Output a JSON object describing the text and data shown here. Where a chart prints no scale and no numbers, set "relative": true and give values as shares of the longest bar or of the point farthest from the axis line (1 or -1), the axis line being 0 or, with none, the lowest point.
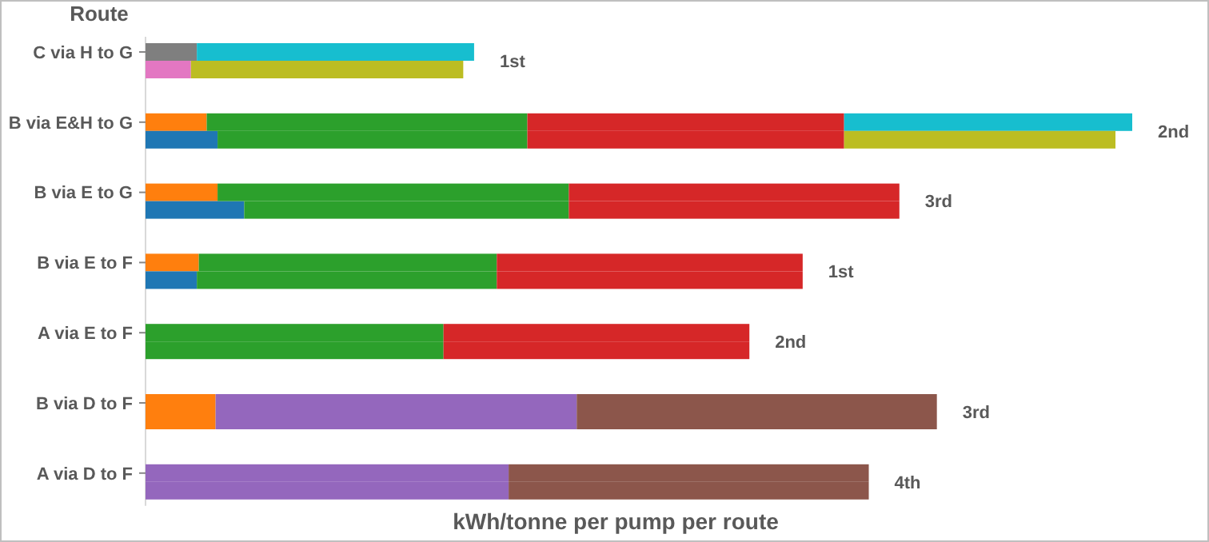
{
  "chart_data": {
    "type": "bar",
    "orientation": "horizontal",
    "relative": true,
    "stacked": true,
    "ylabel": "Route",
    "categories": [
      "C via H to G",
      null,
      "B via E&H to G",
      null,
      "B via E to G",
      null,
      "B via E to F",
      null,
      "A via E to F",
      null,
      "B via D to F",
      null,
      "A via D to F",
      null
    ],
    "series": [
      {
        "color": "#7f7f7f",
        "values": [
          0.052,
          null,
          null,
          null,
          null,
          null,
          null,
          null,
          null,
          null,
          null,
          null,
          null,
          null
        ]
      },
      {
        "color": "#e377c2",
        "values": [
          null,
          0.046,
          null,
          null,
          null,
          null,
          null,
          null,
          null,
          null,
          null,
          null,
          null,
          null
        ]
      },
      {
        "color": "#ff7f0e",
        "values": [
          null,
          null,
          0.062,
          null,
          0.073,
          null,
          0.054,
          null,
          null,
          null,
          0.071,
          0.071,
          null,
          null
        ]
      },
      {
        "color": "#1f77b4",
        "values": [
          null,
          null,
          null,
          0.073,
          null,
          0.1,
          null,
          0.052,
          null,
          null,
          null,
          null,
          null,
          null
        ]
      },
      {
        "color": "#2ca02c",
        "values": [
          null,
          null,
          0.325,
          0.314,
          0.356,
          0.329,
          0.302,
          0.304,
          0.302,
          0.302,
          null,
          null,
          null,
          null
        ]
      },
      {
        "color": "#d62728",
        "values": [
          null,
          null,
          0.321,
          0.321,
          0.335,
          0.335,
          0.31,
          0.31,
          0.31,
          0.31,
          null,
          null,
          null,
          null
        ]
      },
      {
        "color": "#9467bd",
        "values": [
          null,
          null,
          null,
          null,
          null,
          null,
          null,
          null,
          null,
          null,
          0.366,
          0.366,
          0.368,
          0.368
        ]
      },
      {
        "color": "#8c564b",
        "values": [
          null,
          null,
          null,
          null,
          null,
          null,
          null,
          null,
          null,
          null,
          0.365,
          0.365,
          0.365,
          0.365
        ]
      },
      {
        "color": "#17becf",
        "values": [
          0.281,
          null,
          0.292,
          null,
          null,
          null,
          null,
          null,
          null,
          null,
          null,
          null,
          null,
          null
        ]
      },
      {
        "color": "#bcbd22",
        "values": [
          null,
          0.276,
          null,
          0.275,
          null,
          null,
          null,
          null,
          null,
          null,
          null,
          null,
          null,
          null
        ]
      }
    ],
    "annotations": [
      "1st",
      "2nd",
      "3rd",
      "1st",
      "2nd",
      "3rd",
      "4th",
      "kWh/tonne per pump per route"
    ]
  }
}
